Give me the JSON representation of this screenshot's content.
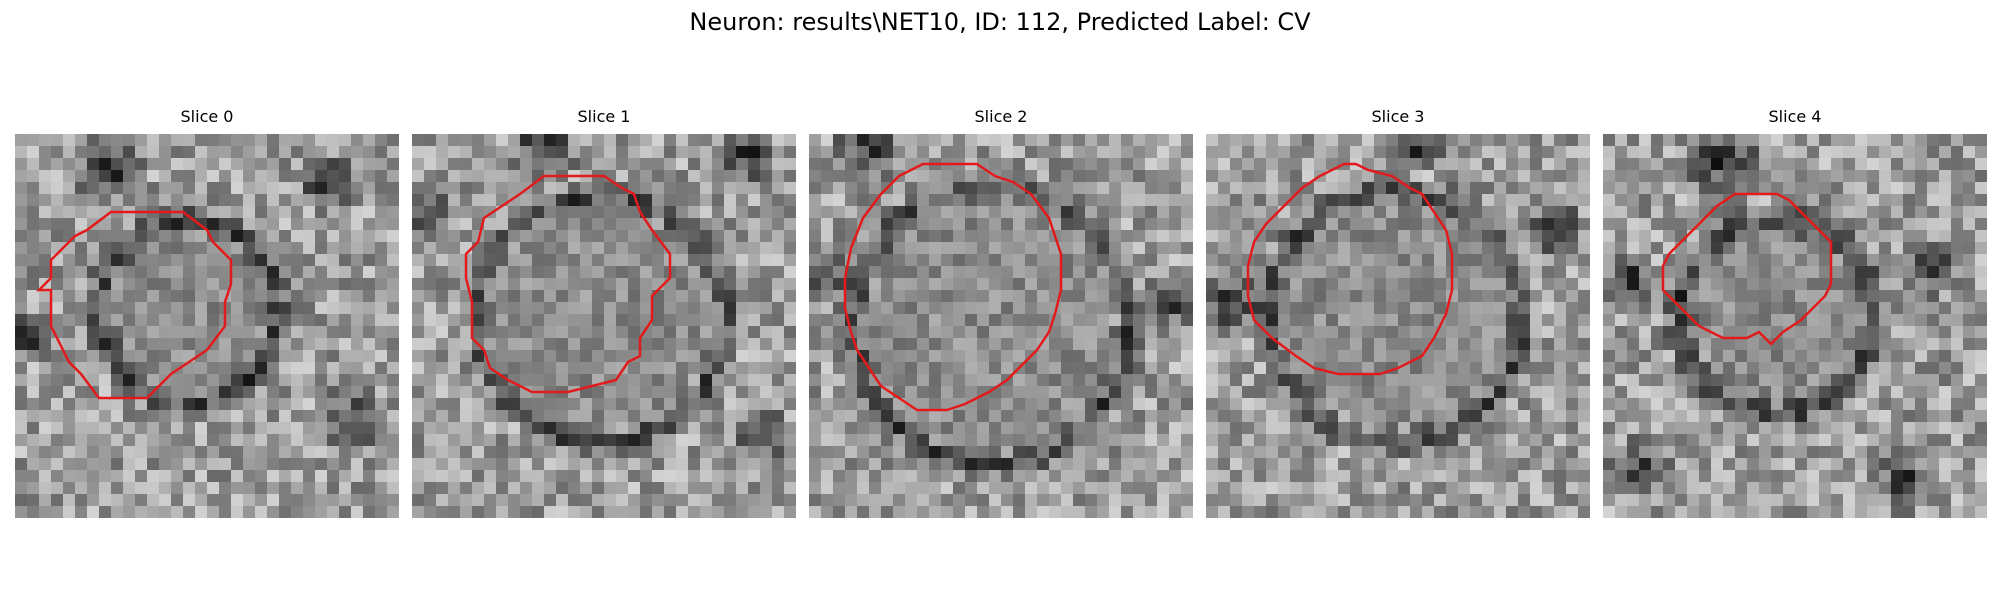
{
  "figure": {
    "title": "Neuron: results\\NET10, ID: 112, Predicted Label: CV"
  },
  "panels": [
    {
      "title": "Slice 0"
    },
    {
      "title": "Slice 1"
    },
    {
      "title": "Slice 2"
    },
    {
      "title": "Slice 3"
    },
    {
      "title": "Slice 4"
    }
  ],
  "colors": {
    "contour": "#e31a1c",
    "background": "#ffffff"
  }
}
